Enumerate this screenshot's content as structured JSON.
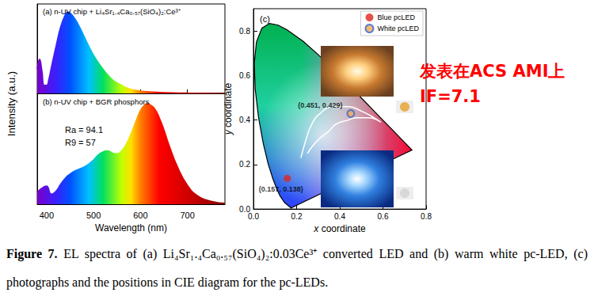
{
  "chart_data": [
    {
      "type": "line",
      "panel": "(a)",
      "title": "n-UV chip + Li₄Sr₁.₄Ca₀.₅₇(SiO₄)₂:Ce³⁺",
      "y_label": "Intensity (a.u.)",
      "color": "rainbow",
      "x": [
        380,
        385,
        390,
        395,
        400,
        405,
        410,
        420,
        430,
        440,
        445,
        450,
        460,
        470,
        480,
        490,
        500,
        510,
        520,
        530,
        540,
        550,
        560,
        570,
        580,
        600,
        620,
        650,
        700,
        780
      ],
      "values": [
        0.3,
        0.42,
        0.28,
        0.1,
        0.1,
        0.18,
        0.32,
        0.58,
        0.82,
        0.97,
        1.0,
        0.99,
        0.92,
        0.82,
        0.7,
        0.58,
        0.47,
        0.38,
        0.3,
        0.23,
        0.17,
        0.13,
        0.1,
        0.07,
        0.05,
        0.03,
        0.02,
        0.01,
        0.005,
        0.0
      ],
      "xlim": [
        380,
        780
      ],
      "xticks": [
        400,
        500,
        600,
        700
      ],
      "ylim": [
        0,
        1.1
      ],
      "tick_labels": false
    },
    {
      "type": "line",
      "panel": "(b)",
      "title": "n-UV chip + BGR phosphors",
      "annotations": [
        "Ra = 94.1",
        "R9 = 57"
      ],
      "x_label": "Wavelength (nm)",
      "color": "rainbow",
      "x": [
        380,
        390,
        400,
        410,
        420,
        430,
        440,
        450,
        460,
        470,
        480,
        490,
        500,
        510,
        520,
        530,
        540,
        550,
        560,
        570,
        580,
        590,
        600,
        610,
        615,
        620,
        630,
        640,
        650,
        660,
        680,
        700,
        720,
        750,
        780
      ],
      "values": [
        0.12,
        0.16,
        0.18,
        0.1,
        0.13,
        0.2,
        0.26,
        0.3,
        0.33,
        0.35,
        0.37,
        0.4,
        0.44,
        0.49,
        0.52,
        0.53,
        0.51,
        0.5,
        0.53,
        0.6,
        0.7,
        0.82,
        0.93,
        0.99,
        1.0,
        0.99,
        0.95,
        0.86,
        0.74,
        0.6,
        0.36,
        0.19,
        0.09,
        0.03,
        0.01
      ],
      "xlim": [
        380,
        780
      ],
      "xticks": [
        400,
        500,
        600,
        700
      ],
      "ylim": [
        0,
        1.1
      ],
      "tick_labels": "x"
    },
    {
      "type": "scatter",
      "panel": "(c)",
      "x_label": "x coordinate",
      "y_label": "y coordinate",
      "xlim": [
        0,
        0.8
      ],
      "xticks": [
        {
          "value": 0,
          "label": "0.0"
        },
        0.2,
        0.4,
        0.6,
        0.8
      ],
      "ylim": [
        0,
        0.9
      ],
      "yticks": [
        {
          "value": 0,
          "label": "0.0"
        },
        0.2,
        0.4,
        0.6,
        0.8
      ],
      "legend": "upper right",
      "series": [
        {
          "name": "Blue pcLED",
          "color": "#e0261e",
          "values": [
            [
              0.157,
              0.138
            ]
          ],
          "value_labels": [
            "(0.157, 0.138)"
          ]
        },
        {
          "name": "White pcLED",
          "color": "#f2a65a",
          "values": [
            [
              0.451,
              0.429
            ]
          ],
          "value_labels": [
            "(0.451, 0.429)"
          ]
        }
      ],
      "spectral_locus": [
        [
          0.1741,
          0.005
        ],
        [
          0.144,
          0.0297
        ],
        [
          0.1241,
          0.0578
        ],
        [
          0.1096,
          0.0868
        ],
        [
          0.0913,
          0.1327
        ],
        [
          0.0687,
          0.2007
        ],
        [
          0.0454,
          0.295
        ],
        [
          0.0235,
          0.4127
        ],
        [
          0.0082,
          0.5384
        ],
        [
          0.0039,
          0.6548
        ],
        [
          0.0139,
          0.7502
        ],
        [
          0.0389,
          0.812
        ],
        [
          0.0743,
          0.8338
        ],
        [
          0.1142,
          0.8262
        ],
        [
          0.1547,
          0.8059
        ],
        [
          0.2296,
          0.7543
        ],
        [
          0.3016,
          0.6923
        ],
        [
          0.3731,
          0.6245
        ],
        [
          0.4441,
          0.5547
        ],
        [
          0.5125,
          0.4866
        ],
        [
          0.5752,
          0.4242
        ],
        [
          0.627,
          0.3725
        ],
        [
          0.6915,
          0.3083
        ],
        [
          0.719,
          0.2809
        ],
        [
          0.7347,
          0.2653
        ]
      ],
      "curve": [
        [
          0.22,
          0.23
        ],
        [
          0.24,
          0.3
        ],
        [
          0.27,
          0.38
        ],
        [
          0.31,
          0.43
        ],
        [
          0.37,
          0.46
        ],
        [
          0.44,
          0.46
        ],
        [
          0.5,
          0.44
        ],
        [
          0.56,
          0.41
        ],
        [
          0.59,
          0.39
        ],
        [
          0.53,
          0.41
        ],
        [
          0.48,
          0.41
        ],
        [
          0.44,
          0.4
        ],
        [
          0.38,
          0.38
        ],
        [
          0.35,
          0.35
        ],
        [
          0.31,
          0.32
        ],
        [
          0.28,
          0.29
        ],
        [
          0.25,
          0.25
        ]
      ]
    }
  ],
  "annotation": {
    "lines": [
      "发表在ACS AMI上",
      "IF=7.1"
    ],
    "color": "#ff0000"
  },
  "caption": {
    "label": "Figure 7.",
    "text": "EL spectra of (a) Li₄Sr₁.₄Ca₀.₅₇(SiO₄)₂:0.03Ce³⁺ converted LED and (b) warm white pc-LED, (c) photographs and the positions in CIE diagram for the pc-LEDs."
  }
}
